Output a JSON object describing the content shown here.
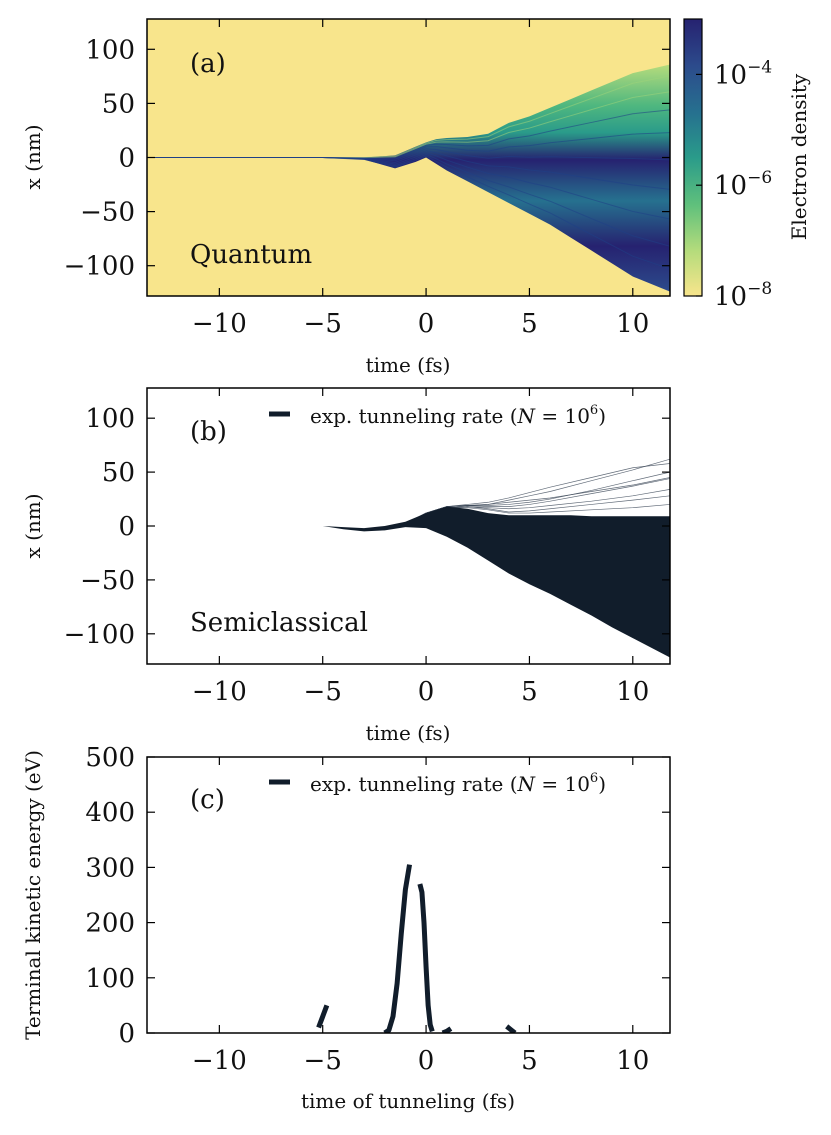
{
  "chart_data": [
    {
      "panel": "a",
      "type": "heatmap",
      "panel_label": "(a)",
      "annotation": "Quantum",
      "xlabel": "time (fs)",
      "ylabel": "x (nm)",
      "xlim": [
        -13.5,
        11.8
      ],
      "ylim": [
        -128,
        128
      ],
      "xticks": [
        -10,
        -5,
        0,
        5,
        10
      ],
      "xtick_labels": [
        "−10",
        "−5",
        "0",
        "5",
        "10"
      ],
      "yticks": [
        100,
        50,
        0,
        -50,
        -100
      ],
      "ytick_labels": [
        "100",
        "50",
        "0",
        "−50",
        "−100"
      ],
      "colorbar": {
        "label": "Electron density",
        "scale": "log",
        "range": [
          1e-08,
          0.001
        ],
        "ticks": [
          {
            "mantissa": "10",
            "exponent": "−4",
            "value": 0.0001
          },
          {
            "mantissa": "10",
            "exponent": "−6",
            "value": 1e-06
          },
          {
            "mantissa": "10",
            "exponent": "−8",
            "value": 1e-08
          }
        ],
        "colors": [
          "#f8e58c",
          "#b6dc7c",
          "#5fc07c",
          "#2a9b8a",
          "#26718f",
          "#2c4b8c",
          "#262270"
        ]
      },
      "envelope": {
        "time": [
          -13.5,
          -5,
          -3,
          -1.5,
          -0.5,
          0,
          0.5,
          1,
          2,
          3,
          4,
          5,
          6,
          7,
          8,
          9,
          10,
          11.8
        ],
        "upper": [
          0,
          0,
          0,
          2,
          10,
          14,
          17,
          18,
          19,
          22,
          32,
          38,
          46,
          54,
          62,
          70,
          78,
          86
        ],
        "lower": [
          0,
          0,
          -2,
          -10,
          -4,
          0,
          -6,
          -12,
          -22,
          -32,
          -42,
          -52,
          -62,
          -74,
          -86,
          -98,
          -110,
          -124
        ]
      }
    },
    {
      "panel": "b",
      "type": "line",
      "panel_label": "(b)",
      "annotation": "Semiclassical",
      "xlabel": "time (fs)",
      "ylabel": "x (nm)",
      "xlim": [
        -13.5,
        11.8
      ],
      "ylim": [
        -128,
        128
      ],
      "xticks": [
        -10,
        -5,
        0,
        5,
        10
      ],
      "xtick_labels": [
        "−10",
        "−5",
        "0",
        "5",
        "10"
      ],
      "yticks": [
        100,
        50,
        0,
        -50,
        -100
      ],
      "ytick_labels": [
        "100",
        "50",
        "0",
        "−50",
        "−100"
      ],
      "legend": {
        "text": "exp. tunneling rate (",
        "math_var": "N",
        "math_rest": " = 10",
        "exp": "6",
        "close": ")",
        "placement": "top-right"
      },
      "series": [
        {
          "name": "exp. tunneling rate (N = 10^6)",
          "color": "#111d2b",
          "fill_time": [
            -5,
            -4,
            -3,
            -2,
            -1,
            0,
            1,
            2,
            3,
            4,
            5,
            6,
            7,
            8,
            9,
            10,
            11.8
          ],
          "fill_upper": [
            0,
            -1,
            -2,
            0,
            4,
            12,
            18,
            16,
            12,
            10,
            10,
            10,
            10,
            9,
            9,
            9,
            9
          ],
          "fill_lower": [
            0,
            -3,
            -5,
            -4,
            -1,
            -2,
            -10,
            -20,
            -32,
            -44,
            -54,
            -63,
            -73,
            -83,
            -94,
            -104,
            -122
          ],
          "stray_trajectories": [
            {
              "t": [
                -1,
                0,
                1,
                2,
                3,
                4,
                5,
                6,
                8,
                10,
                11.8
              ],
              "x": [
                2,
                12,
                18,
                19,
                20,
                22,
                24,
                26,
                32,
                38,
                45
              ]
            },
            {
              "t": [
                -1,
                0,
                1,
                2,
                3,
                4,
                5,
                6,
                8,
                10,
                11.8
              ],
              "x": [
                2,
                12,
                18,
                19,
                20,
                24,
                28,
                32,
                42,
                52,
                62
              ]
            },
            {
              "t": [
                -1,
                0,
                1,
                2,
                3,
                4,
                5,
                6,
                8,
                10,
                11.8
              ],
              "x": [
                2,
                12,
                18,
                19,
                18,
                18,
                20,
                23,
                30,
                37,
                44
              ]
            },
            {
              "t": [
                -1,
                0,
                1,
                2,
                3,
                4,
                5,
                6,
                8,
                10,
                11.8
              ],
              "x": [
                2,
                12,
                17,
                18,
                17,
                16,
                17,
                19,
                23,
                28,
                34
              ]
            },
            {
              "t": [
                -1,
                0,
                1,
                2,
                3,
                4,
                5,
                6,
                8,
                10,
                11.8
              ],
              "x": [
                2,
                12,
                18,
                20,
                22,
                26,
                31,
                36,
                45,
                54,
                58
              ]
            },
            {
              "t": [
                -1,
                0,
                1,
                2,
                3,
                4,
                5,
                6,
                8,
                10,
                11.8
              ],
              "x": [
                2,
                12,
                17,
                18,
                16,
                13,
                14,
                16,
                20,
                24,
                28
              ]
            },
            {
              "t": [
                -1,
                0,
                1,
                2,
                3,
                4,
                5,
                6,
                8,
                10,
                11.8
              ],
              "x": [
                2,
                12,
                18,
                19,
                19,
                20,
                22,
                25,
                33,
                42,
                50
              ]
            },
            {
              "t": [
                -1,
                0,
                1,
                2,
                3,
                4,
                5,
                6,
                8,
                10,
                11.8
              ],
              "x": [
                2,
                12,
                17,
                17,
                15,
                12,
                12,
                13,
                15,
                17,
                20
              ]
            }
          ]
        }
      ]
    },
    {
      "panel": "c",
      "type": "line",
      "panel_label": "(c)",
      "xlabel": "time of tunneling (fs)",
      "ylabel": "Terminal kinetic energy (eV)",
      "xlim": [
        -13.5,
        11.8
      ],
      "ylim": [
        0,
        500
      ],
      "xticks": [
        -10,
        -5,
        0,
        5,
        10
      ],
      "xtick_labels": [
        "−10",
        "−5",
        "0",
        "5",
        "10"
      ],
      "yticks": [
        0,
        100,
        200,
        300,
        400,
        500
      ],
      "ytick_labels": [
        "0",
        "100",
        "200",
        "300",
        "400",
        "500"
      ],
      "legend": {
        "text": "exp. tunneling rate (",
        "math_var": "N",
        "math_rest": " = 10",
        "exp": "6",
        "close": ")",
        "placement": "top-right"
      },
      "series": [
        {
          "name": "exp. tunneling rate (N = 10^6)",
          "color": "#111d2b",
          "segments": [
            {
              "x": [
                -5.2,
                -5.0,
                -4.8
              ],
              "y": [
                10,
                30,
                50
              ]
            },
            {
              "x": [
                -2.0,
                -1.8,
                -1.6,
                -1.4,
                -1.2,
                -1.0,
                -0.8
              ],
              "y": [
                0,
                5,
                30,
                90,
                180,
                260,
                305
              ]
            },
            {
              "x": [
                -0.3,
                -0.2,
                -0.1,
                0.0,
                0.1,
                0.2,
                0.3
              ],
              "y": [
                270,
                255,
                200,
                120,
                50,
                15,
                3
              ]
            },
            {
              "x": [
                0.8,
                1.0,
                1.2
              ],
              "y": [
                0,
                3,
                8
              ]
            },
            {
              "x": [
                3.9,
                4.1,
                4.3
              ],
              "y": [
                12,
                6,
                0
              ]
            }
          ]
        }
      ]
    }
  ]
}
